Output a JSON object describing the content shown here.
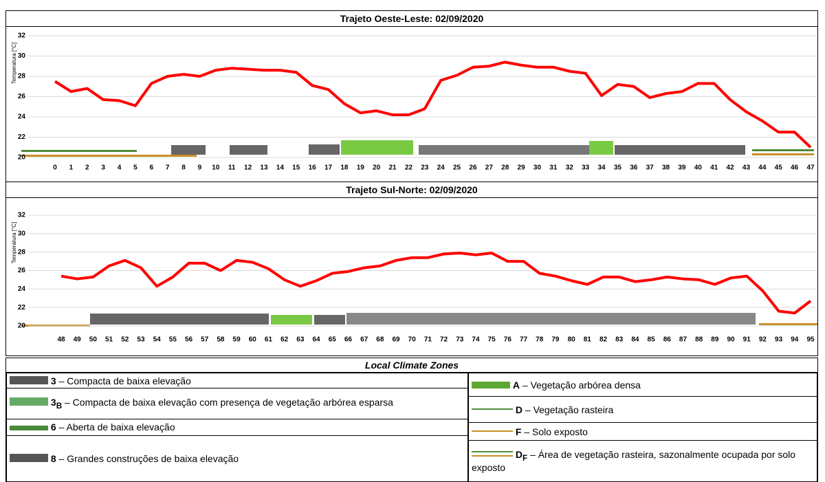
{
  "chart_data": [
    {
      "type": "line",
      "title": "Trajeto Oeste-Leste: 02/09/2020",
      "y_label": "Temperatura [°C]",
      "categories": [
        0,
        1,
        2,
        3,
        4,
        5,
        6,
        7,
        8,
        9,
        10,
        11,
        12,
        13,
        14,
        15,
        16,
        17,
        18,
        19,
        20,
        21,
        22,
        23,
        24,
        25,
        26,
        27,
        28,
        29,
        30,
        31,
        32,
        33,
        34,
        35,
        36,
        37,
        38,
        39,
        40,
        41,
        42,
        43,
        44,
        45,
        46,
        47
      ],
      "values": [
        27.5,
        26.5,
        26.8,
        25.7,
        25.6,
        25.1,
        27.3,
        28.0,
        28.2,
        28.0,
        28.6,
        28.8,
        28.7,
        28.6,
        28.6,
        28.4,
        27.1,
        26.7,
        25.3,
        24.4,
        24.6,
        24.2,
        24.2,
        24.8,
        27.6,
        28.1,
        28.9,
        29.0,
        29.4,
        29.1,
        28.9,
        28.9,
        28.5,
        28.3,
        26.1,
        27.2,
        27.0,
        25.9,
        26.3,
        26.5,
        27.3,
        27.3,
        25.7,
        24.5,
        23.6,
        22.5,
        22.5,
        21.0
      ],
      "color": "#ff0000",
      "ylim": [
        20,
        32
      ],
      "yticks": [
        20,
        22,
        24,
        26,
        28,
        30,
        32
      ],
      "grid": true
    },
    {
      "type": "line",
      "title": "Trajeto Sul-Norte: 02/09/2020",
      "y_label": "Temperatura [°C]",
      "categories": [
        48,
        49,
        50,
        51,
        52,
        53,
        54,
        55,
        56,
        57,
        58,
        59,
        60,
        61,
        62,
        63,
        64,
        65,
        66,
        67,
        68,
        69,
        70,
        71,
        72,
        73,
        74,
        75,
        76,
        77,
        78,
        79,
        80,
        81,
        82,
        83,
        84,
        85,
        86,
        87,
        88,
        89,
        90,
        91,
        92,
        93,
        94,
        95
      ],
      "values": [
        25.4,
        25.1,
        25.3,
        26.5,
        27.1,
        26.3,
        24.3,
        25.3,
        26.8,
        26.8,
        26.0,
        27.1,
        26.9,
        26.2,
        25.0,
        24.3,
        24.9,
        25.7,
        25.9,
        26.3,
        26.5,
        27.1,
        27.4,
        27.4,
        27.8,
        27.9,
        27.7,
        27.9,
        27.0,
        27.0,
        25.7,
        25.4,
        24.9,
        24.5,
        25.3,
        25.3,
        24.8,
        25.0,
        25.3,
        25.1,
        25.0,
        24.5,
        25.2,
        25.4,
        23.8,
        21.6,
        21.4,
        22.7
      ],
      "color": "#ff0000",
      "ylim": [
        20,
        32
      ],
      "yticks": [
        20,
        22,
        24,
        26,
        28,
        30,
        32
      ],
      "grid": true
    }
  ],
  "legend_table": {
    "title": "Local Climate Zones",
    "left": [
      {
        "code": "3",
        "text": "– Compacta de baixa elevação"
      },
      {
        "code": "3",
        "sub": "B",
        "text": "– Compacta de baixa elevação com presença de vegetação arbórea esparsa"
      },
      {
        "code": "6",
        "text": "– Aberta de baixa elevação"
      },
      {
        "code": "8",
        "text": "– Grandes construções de baixa elevação"
      }
    ],
    "right": [
      {
        "code": "A",
        "text": "– Vegetação arbórea densa"
      },
      {
        "code": "D",
        "text": "– Vegetação rasteira"
      },
      {
        "code": "F",
        "text": "– Solo exposto"
      },
      {
        "code": "D",
        "sub": "F",
        "text": "– Área de vegetação rasteira, sazonalmente ocupada por solo exposto"
      }
    ]
  }
}
